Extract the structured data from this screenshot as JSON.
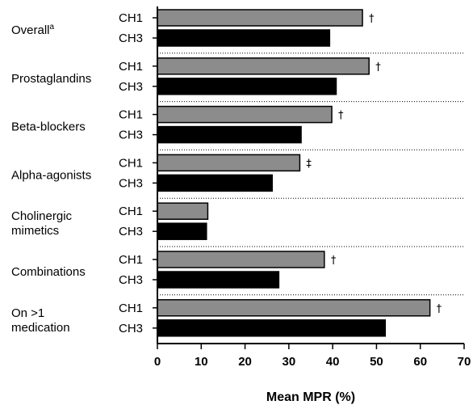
{
  "chart_data": {
    "type": "bar",
    "orientation": "horizontal",
    "xlabel": "Mean MPR (%)",
    "xlim": [
      0,
      70
    ],
    "xticks": [
      0,
      10,
      20,
      30,
      40,
      50,
      60,
      70
    ],
    "grid": false,
    "group_separators": "dotted",
    "series": [
      {
        "name": "CH1",
        "color": "#8c8c8c"
      },
      {
        "name": "CH3",
        "color": "#000000"
      }
    ],
    "groups": [
      {
        "label_lines": [
          "Overall"
        ],
        "superscript": "a",
        "CH1": 46.8,
        "CH3": 39.3,
        "marker": "†"
      },
      {
        "label_lines": [
          "Prostaglandins"
        ],
        "superscript": "",
        "CH1": 48.3,
        "CH3": 40.8,
        "marker": "†"
      },
      {
        "label_lines": [
          "Beta-blockers"
        ],
        "superscript": "",
        "CH1": 39.8,
        "CH3": 32.8,
        "marker": "†"
      },
      {
        "label_lines": [
          "Alpha-agonists"
        ],
        "superscript": "",
        "CH1": 32.5,
        "CH3": 26.2,
        "marker": "‡"
      },
      {
        "label_lines": [
          "Cholinergic",
          "mimetics"
        ],
        "superscript": "",
        "CH1": 11.5,
        "CH3": 11.2,
        "marker": ""
      },
      {
        "label_lines": [
          "Combinations"
        ],
        "superscript": "",
        "CH1": 38.1,
        "CH3": 27.7,
        "marker": "†"
      },
      {
        "label_lines": [
          "On >1",
          "medication"
        ],
        "superscript": "",
        "CH1": 62.2,
        "CH3": 52.0,
        "marker": "†"
      }
    ]
  }
}
